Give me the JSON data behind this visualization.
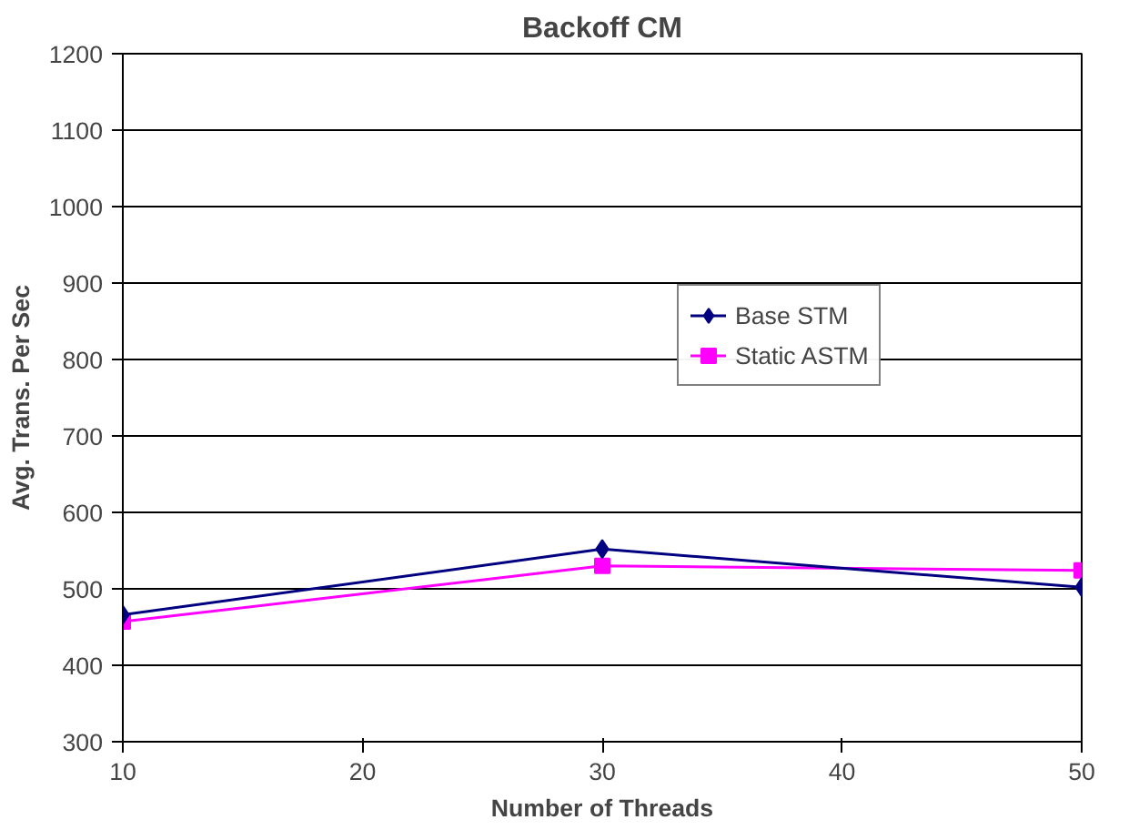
{
  "chart_data": {
    "type": "line",
    "title": "Backoff CM",
    "xlabel": "Number of Threads",
    "ylabel": "Avg. Trans. Per Sec",
    "x": [
      10,
      30,
      50
    ],
    "series": [
      {
        "name": "Base STM",
        "color": "#000080",
        "values": [
          466,
          552,
          502
        ],
        "marker": "diamond"
      },
      {
        "name": "Static ASTM",
        "color": "#ff00ff",
        "values": [
          457,
          530,
          524
        ],
        "marker": "square"
      }
    ],
    "xlim": [
      10,
      50
    ],
    "xticks": [
      10,
      20,
      30,
      40,
      50
    ],
    "ylim": [
      300,
      1200
    ],
    "yticks": [
      300,
      400,
      500,
      600,
      700,
      800,
      900,
      1000,
      1100,
      1200
    ],
    "grid": "y",
    "legend": "top right",
    "line_style": "solid"
  }
}
